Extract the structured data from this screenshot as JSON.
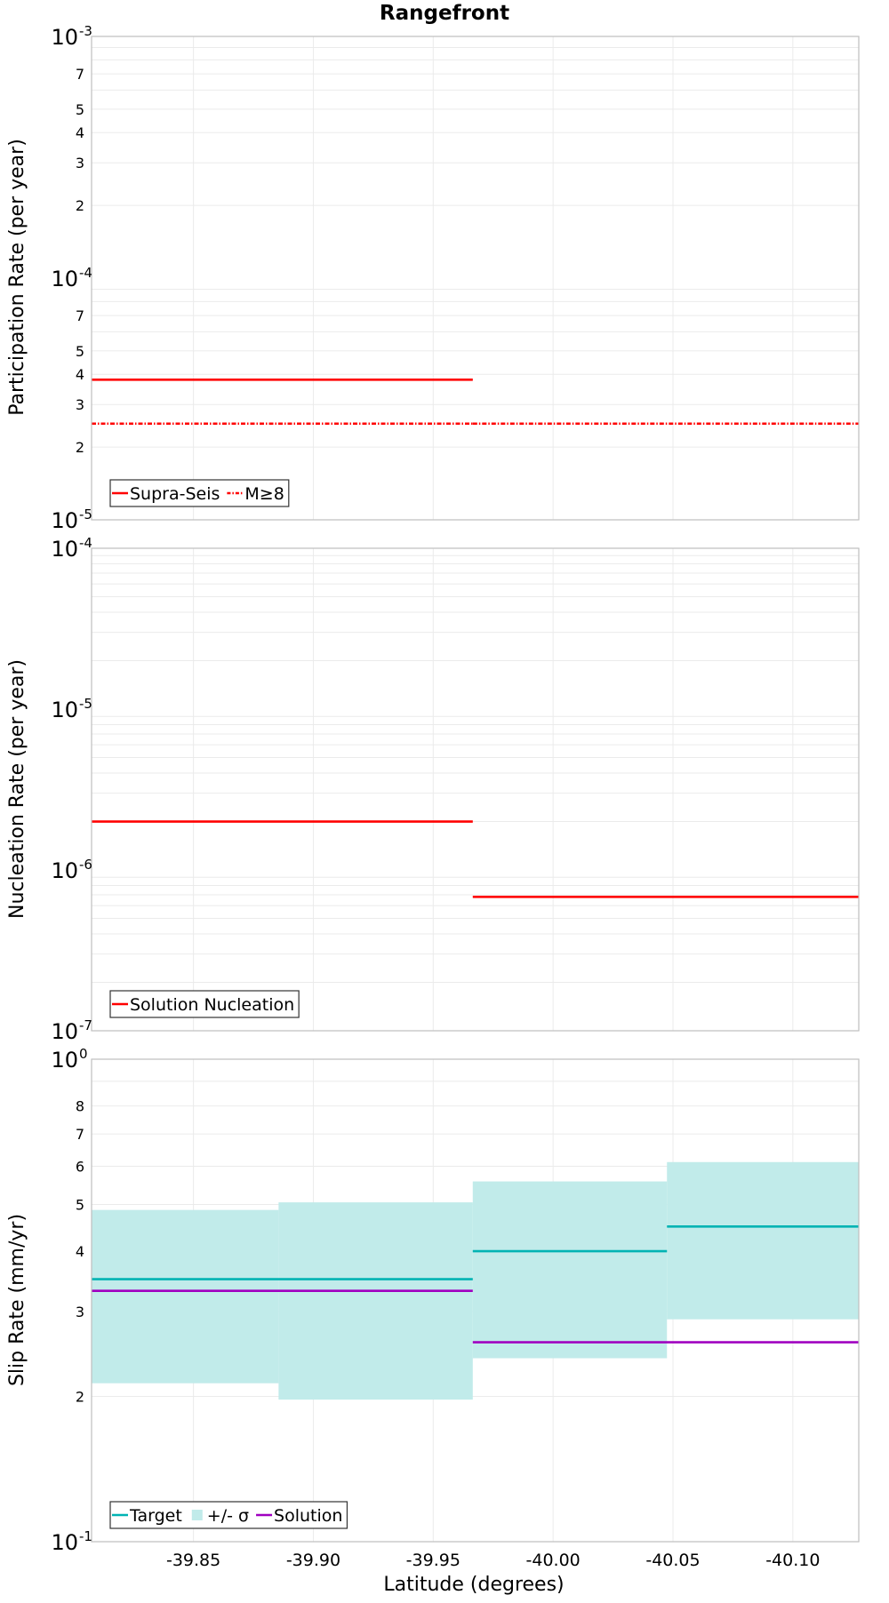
{
  "title": "Rangefront",
  "xlabel": "Latitude (degrees)",
  "colors": {
    "red": "#ff0000",
    "target": "#00b3b3",
    "band": "#c1ebea",
    "solution": "#a000c0",
    "grid": "#ebebeb",
    "frame": "#bfbfbf"
  },
  "chart_data": [
    {
      "type": "line",
      "step": true,
      "ylabel": "Participation Rate (per year)",
      "yscale": "log",
      "ylim": [
        1e-05,
        0.001
      ],
      "xlim": [
        -39.8075,
        -40.1275
      ],
      "xticks": [
        -39.85,
        -39.9,
        -39.95,
        -40.0,
        -40.05,
        -40.1
      ],
      "xtick_labels": [
        "-39.85",
        "-39.90",
        "-39.95",
        "-40.00",
        "-40.05",
        "-40.10"
      ],
      "ytick_labels": {
        "decades": [
          {
            "value": 1e-05,
            "base": "10",
            "exp": "-5"
          },
          {
            "value": 0.0001,
            "base": "10",
            "exp": "-4"
          },
          {
            "value": 0.001,
            "base": "10",
            "exp": "-3"
          }
        ],
        "minor": [
          {
            "value": 2e-05,
            "label": "2"
          },
          {
            "value": 3e-05,
            "label": "3"
          },
          {
            "value": 4e-05,
            "label": "4"
          },
          {
            "value": 5e-05,
            "label": "5"
          },
          {
            "value": 7e-05,
            "label": "7"
          },
          {
            "value": 0.0002,
            "label": "2"
          },
          {
            "value": 0.0003,
            "label": "3"
          },
          {
            "value": 0.0004,
            "label": "4"
          },
          {
            "value": 0.0005,
            "label": "5"
          },
          {
            "value": 0.0007,
            "label": "7"
          }
        ]
      },
      "series": [
        {
          "name": "Supra-Seis",
          "color": "#ff0000",
          "style": "solid",
          "segments": [
            {
              "x0": -39.8075,
              "x1": -39.9665,
              "y": 3.8e-05
            }
          ]
        },
        {
          "name": "M≥8",
          "color": "#ff0000",
          "style": "dashdot",
          "segments": [
            {
              "x0": -39.8075,
              "x1": -39.9665,
              "y": 2.5e-05
            },
            {
              "x0": -39.9665,
              "x1": -40.1275,
              "y": 2.5e-05
            }
          ]
        }
      ],
      "legend": {
        "position": "bottom-left",
        "entries": [
          {
            "label": "Supra-Seis",
            "kind": "line",
            "color": "#ff0000",
            "style": "solid"
          },
          {
            "label": "M≥8",
            "kind": "line",
            "color": "#ff0000",
            "style": "dashdot"
          }
        ]
      }
    },
    {
      "type": "line",
      "step": true,
      "ylabel": "Nucleation Rate (per year)",
      "yscale": "log",
      "ylim": [
        1e-07,
        0.0001
      ],
      "xlim": [
        -39.8075,
        -40.1275
      ],
      "ytick_labels": {
        "decades": [
          {
            "value": 1e-07,
            "base": "10",
            "exp": "-7"
          },
          {
            "value": 1e-06,
            "base": "10",
            "exp": "-6"
          },
          {
            "value": 1e-05,
            "base": "10",
            "exp": "-5"
          },
          {
            "value": 0.0001,
            "base": "10",
            "exp": "-4"
          }
        ],
        "minor": []
      },
      "series": [
        {
          "name": "Solution Nucleation",
          "color": "#ff0000",
          "style": "solid",
          "segments": [
            {
              "x0": -39.8075,
              "x1": -39.9665,
              "y": 2e-06
            },
            {
              "x0": -39.9665,
              "x1": -40.1275,
              "y": 6.8e-07
            }
          ]
        }
      ],
      "legend": {
        "position": "bottom-left",
        "entries": [
          {
            "label": "Solution Nucleation",
            "kind": "line",
            "color": "#ff0000",
            "style": "solid"
          }
        ]
      }
    },
    {
      "type": "line",
      "step": true,
      "ylabel": "Slip Rate (mm/yr)",
      "yscale": "log",
      "ylim": [
        0.1,
        1.0
      ],
      "xlim": [
        -39.8075,
        -40.1275
      ],
      "ytick_labels": {
        "decades": [
          {
            "value": 0.1,
            "base": "10",
            "exp": "-1"
          },
          {
            "value": 1.0,
            "base": "10",
            "exp": "0"
          }
        ],
        "minor": [
          {
            "value": 0.2,
            "label": "2"
          },
          {
            "value": 0.3,
            "label": "3"
          },
          {
            "value": 0.4,
            "label": "4"
          },
          {
            "value": 0.5,
            "label": "5"
          },
          {
            "value": 0.6,
            "label": "6"
          },
          {
            "value": 0.7,
            "label": "7"
          },
          {
            "value": 0.8,
            "label": "8"
          }
        ]
      },
      "band": {
        "name": "+/- σ",
        "color": "#c1ebea",
        "segments": [
          {
            "x0": -39.8075,
            "x1": -39.8855,
            "low": 0.213,
            "high": 0.487
          },
          {
            "x0": -39.8855,
            "x1": -39.9665,
            "low": 0.197,
            "high": 0.505
          },
          {
            "x0": -39.9665,
            "x1": -40.0475,
            "low": 0.24,
            "high": 0.558
          },
          {
            "x0": -40.0475,
            "x1": -40.1275,
            "low": 0.289,
            "high": 0.612
          }
        ]
      },
      "series": [
        {
          "name": "Target",
          "color": "#00b3b3",
          "style": "solid",
          "segments": [
            {
              "x0": -39.8075,
              "x1": -39.9665,
              "y": 0.35
            },
            {
              "x0": -39.9665,
              "x1": -40.0475,
              "y": 0.4
            },
            {
              "x0": -40.0475,
              "x1": -40.1275,
              "y": 0.45
            }
          ]
        },
        {
          "name": "Solution",
          "color": "#a000c0",
          "style": "solid",
          "segments": [
            {
              "x0": -39.8075,
              "x1": -39.9665,
              "y": 0.331
            },
            {
              "x0": -39.9665,
              "x1": -40.1275,
              "y": 0.259
            }
          ]
        }
      ],
      "legend": {
        "position": "bottom-left",
        "entries": [
          {
            "label": "Target",
            "kind": "line",
            "color": "#00b3b3",
            "style": "solid"
          },
          {
            "label": "+/- σ",
            "kind": "box",
            "color": "#c1ebea",
            "style": "solid"
          },
          {
            "label": "Solution",
            "kind": "line",
            "color": "#a000c0",
            "style": "solid"
          }
        ]
      }
    }
  ]
}
